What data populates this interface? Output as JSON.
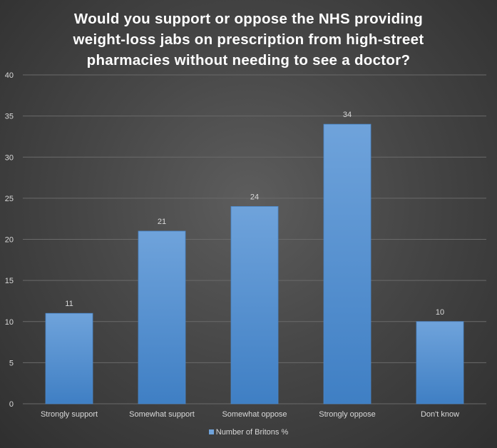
{
  "chart_data": {
    "type": "bar",
    "title_lines": [
      "Would you support or oppose the NHS providing",
      "weight-loss jabs on prescription from high-street",
      "pharmacies without needing to see a doctor?"
    ],
    "categories": [
      "Strongly support",
      "Somewhat support",
      "Somewhat oppose",
      "Strongly oppose",
      "Don't know"
    ],
    "series": [
      {
        "name": "Number of Britons %",
        "values": [
          11,
          21,
          24,
          34,
          10
        ]
      }
    ],
    "ylim": [
      0,
      40
    ],
    "yticks": [
      0,
      5,
      10,
      15,
      20,
      25,
      30,
      35,
      40
    ],
    "grid": true,
    "legend_position": "bottom",
    "data_labels": true,
    "colors": {
      "bar_top": "#6fa3db",
      "bar_bottom": "#3f7fc4",
      "bar_border": "#4a86c8",
      "gridline": "#6a6a6a",
      "text": "#d9d9d9",
      "title": "#ffffff"
    }
  }
}
